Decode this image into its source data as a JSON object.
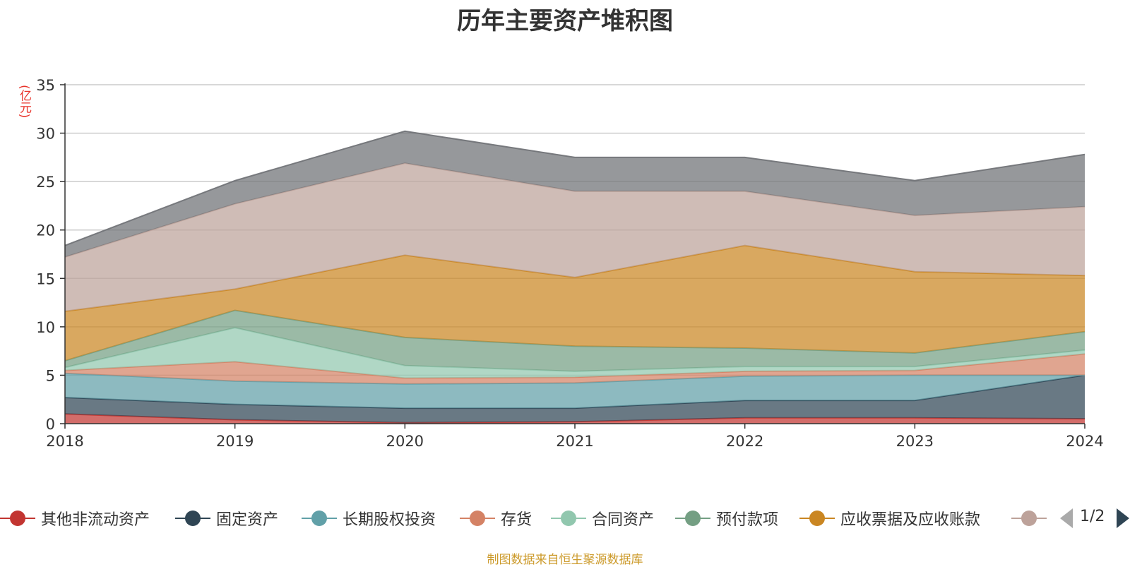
{
  "chart_data": {
    "type": "area",
    "stacked": true,
    "title": "历年主要资产堆积图",
    "ylabel": "(亿元)",
    "ylim": [
      0,
      35
    ],
    "yticks": [
      "0",
      "5",
      "10",
      "15",
      "20",
      "25",
      "30",
      "35"
    ],
    "categories": [
      "2018",
      "2019",
      "2020",
      "2021",
      "2022",
      "2023",
      "2024"
    ],
    "grid": true,
    "legend_position": "bottom",
    "series": [
      {
        "name": "其他非流动资产",
        "color": "#c23531",
        "values": [
          1.0,
          0.4,
          0.1,
          0.2,
          0.6,
          0.6,
          0.5
        ]
      },
      {
        "name": "固定资产",
        "color": "#2f4554",
        "values": [
          1.7,
          1.6,
          1.5,
          1.4,
          1.8,
          1.8,
          4.5
        ]
      },
      {
        "name": "长期股权投资",
        "color": "#61a0a8",
        "values": [
          2.5,
          2.4,
          2.5,
          2.6,
          2.5,
          2.6,
          0.0
        ]
      },
      {
        "name": "存货",
        "color": "#d48265",
        "values": [
          0.3,
          2.0,
          0.6,
          0.6,
          0.5,
          0.5,
          2.2
        ]
      },
      {
        "name": "合同资产",
        "color": "#91c7ae",
        "values": [
          0.3,
          3.5,
          1.3,
          0.6,
          0.5,
          0.4,
          0.4
        ]
      },
      {
        "name": "预付款项",
        "color": "#749f83",
        "values": [
          0.7,
          1.8,
          2.9,
          2.6,
          1.9,
          1.4,
          1.9
        ]
      },
      {
        "name": "应收票据及应收账款",
        "color": "#ca8622",
        "values": [
          5.1,
          2.2,
          8.5,
          7.1,
          10.6,
          8.4,
          5.8
        ]
      },
      {
        "name": "",
        "color": "#bda29a",
        "values": [
          5.6,
          8.8,
          9.5,
          8.9,
          5.6,
          5.8,
          7.1
        ]
      },
      {
        "name": "",
        "color": "#6e7074",
        "values": [
          1.2,
          2.4,
          3.3,
          3.5,
          3.5,
          3.6,
          5.4
        ]
      }
    ]
  },
  "legend": {
    "page_text": "1/2"
  },
  "source_note": "制图数据来自恒生聚源数据库"
}
